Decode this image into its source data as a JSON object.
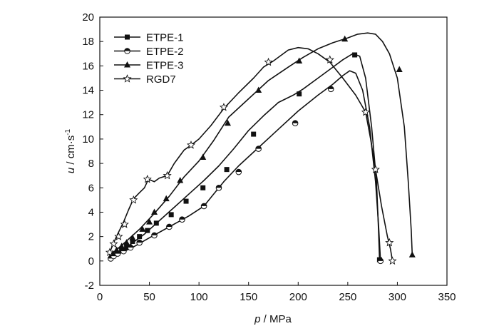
{
  "chart_data": {
    "type": "line",
    "title": "",
    "xlabel": {
      "var": "p",
      "unit": "MPa"
    },
    "ylabel": {
      "var": "u",
      "unit_base": "cm·s",
      "unit_exp": "-1"
    },
    "xlim": [
      0,
      350
    ],
    "ylim": [
      -2,
      20
    ],
    "xticks": [
      0,
      50,
      100,
      150,
      200,
      250,
      300,
      350
    ],
    "yticks": [
      -2,
      0,
      2,
      4,
      6,
      8,
      10,
      12,
      14,
      16,
      18,
      20
    ],
    "grid": false,
    "legend_position": "top-left",
    "series": [
      {
        "name": "ETPE-1",
        "marker": "square-filled",
        "curve": [
          [
            10,
            0.3
          ],
          [
            20,
            0.8
          ],
          [
            30,
            1.3
          ],
          [
            45,
            2.2
          ],
          [
            60,
            3.3
          ],
          [
            75,
            4.4
          ],
          [
            90,
            5.5
          ],
          [
            105,
            6.6
          ],
          [
            120,
            7.8
          ],
          [
            135,
            9.2
          ],
          [
            150,
            10.7
          ],
          [
            165,
            11.9
          ],
          [
            180,
            13.0
          ],
          [
            195,
            13.6
          ],
          [
            205,
            14.1
          ],
          [
            220,
            15.0
          ],
          [
            235,
            15.9
          ],
          [
            245,
            16.5
          ],
          [
            255,
            17.0
          ],
          [
            262,
            16.8
          ],
          [
            268,
            15.0
          ],
          [
            274,
            11.0
          ],
          [
            279,
            6.5
          ],
          [
            281,
            2.5
          ],
          [
            282,
            0.1
          ]
        ],
        "markers": [
          [
            12,
            0.4
          ],
          [
            17,
            0.6
          ],
          [
            22,
            0.9
          ],
          [
            27,
            1.1
          ],
          [
            33,
            1.6
          ],
          [
            40,
            2.0
          ],
          [
            48,
            2.5
          ],
          [
            57,
            3.1
          ],
          [
            72,
            3.8
          ],
          [
            87,
            4.9
          ],
          [
            104,
            6.0
          ],
          [
            128,
            7.5
          ],
          [
            155,
            10.4
          ],
          [
            201,
            13.7
          ],
          [
            257,
            16.9
          ],
          [
            282,
            0.1
          ]
        ]
      },
      {
        "name": "ETPE-2",
        "marker": "circle-half",
        "curve": [
          [
            10,
            0.2
          ],
          [
            20,
            0.6
          ],
          [
            35,
            1.2
          ],
          [
            50,
            1.9
          ],
          [
            70,
            2.8
          ],
          [
            90,
            3.7
          ],
          [
            105,
            4.5
          ],
          [
            115,
            5.5
          ],
          [
            125,
            6.5
          ],
          [
            140,
            7.8
          ],
          [
            160,
            9.3
          ],
          [
            180,
            10.8
          ],
          [
            200,
            12.3
          ],
          [
            220,
            13.6
          ],
          [
            235,
            14.5
          ],
          [
            245,
            15.2
          ],
          [
            252,
            15.6
          ],
          [
            258,
            15.4
          ],
          [
            265,
            14.0
          ],
          [
            272,
            11.0
          ],
          [
            278,
            6.5
          ],
          [
            281,
            3.0
          ],
          [
            283,
            0.0
          ]
        ],
        "markers": [
          [
            11,
            0.2
          ],
          [
            14,
            0.4
          ],
          [
            18,
            0.6
          ],
          [
            24,
            0.8
          ],
          [
            31,
            1.1
          ],
          [
            40,
            1.5
          ],
          [
            55,
            2.1
          ],
          [
            70,
            2.8
          ],
          [
            83,
            3.4
          ],
          [
            105,
            4.5
          ],
          [
            120,
            6.0
          ],
          [
            140,
            7.3
          ],
          [
            160,
            9.2
          ],
          [
            197,
            11.3
          ],
          [
            233,
            14.1
          ],
          [
            283,
            0.0
          ]
        ]
      },
      {
        "name": "ETPE-3",
        "marker": "triangle-filled",
        "curve": [
          [
            10,
            0.4
          ],
          [
            15,
            0.8
          ],
          [
            25,
            1.5
          ],
          [
            40,
            2.6
          ],
          [
            55,
            3.9
          ],
          [
            70,
            5.3
          ],
          [
            85,
            6.9
          ],
          [
            100,
            8.2
          ],
          [
            115,
            9.9
          ],
          [
            130,
            11.8
          ],
          [
            150,
            13.3
          ],
          [
            170,
            14.8
          ],
          [
            190,
            15.9
          ],
          [
            205,
            16.7
          ],
          [
            220,
            17.4
          ],
          [
            235,
            17.9
          ],
          [
            250,
            18.3
          ],
          [
            260,
            18.6
          ],
          [
            270,
            18.7
          ],
          [
            278,
            18.6
          ],
          [
            285,
            18.0
          ],
          [
            292,
            17.0
          ],
          [
            300,
            15.0
          ],
          [
            307,
            11.0
          ],
          [
            311,
            6.5
          ],
          [
            314,
            2.5
          ],
          [
            315,
            0.5
          ]
        ],
        "markers": [
          [
            13,
            0.6
          ],
          [
            17,
            0.9
          ],
          [
            22,
            1.2
          ],
          [
            27,
            1.5
          ],
          [
            33,
            1.9
          ],
          [
            43,
            2.6
          ],
          [
            50,
            3.2
          ],
          [
            55,
            4.0
          ],
          [
            67,
            5.1
          ],
          [
            81,
            6.6
          ],
          [
            104,
            8.5
          ],
          [
            129,
            11.3
          ],
          [
            160,
            14.0
          ],
          [
            201,
            16.4
          ],
          [
            247,
            18.2
          ],
          [
            302,
            15.7
          ],
          [
            315,
            0.5
          ]
        ]
      },
      {
        "name": "RGD7",
        "marker": "star-open",
        "curve": [
          [
            10,
            0.7
          ],
          [
            14,
            1.5
          ],
          [
            18,
            2.2
          ],
          [
            24,
            3.2
          ],
          [
            29,
            4.2
          ],
          [
            34,
            5.1
          ],
          [
            40,
            5.6
          ],
          [
            45,
            6.0
          ],
          [
            49,
            6.7
          ],
          [
            55,
            6.5
          ],
          [
            60,
            6.8
          ],
          [
            68,
            7.0
          ],
          [
            75,
            8.0
          ],
          [
            85,
            9.1
          ],
          [
            92,
            9.5
          ],
          [
            100,
            10.0
          ],
          [
            112,
            11.1
          ],
          [
            125,
            12.5
          ],
          [
            140,
            13.8
          ],
          [
            155,
            15.0
          ],
          [
            165,
            15.9
          ],
          [
            175,
            16.4
          ],
          [
            190,
            17.3
          ],
          [
            200,
            17.5
          ],
          [
            210,
            17.4
          ],
          [
            220,
            17.0
          ],
          [
            232,
            16.3
          ],
          [
            245,
            15.0
          ],
          [
            258,
            13.6
          ],
          [
            268,
            12.2
          ],
          [
            273,
            10.0
          ],
          [
            278,
            7.5
          ],
          [
            284,
            4.5
          ],
          [
            290,
            2.0
          ],
          [
            293,
            1.0
          ],
          [
            295,
            0.0
          ]
        ],
        "markers": [
          [
            10,
            0.7
          ],
          [
            14,
            1.4
          ],
          [
            19,
            2.0
          ],
          [
            25,
            3.0
          ],
          [
            34,
            5.0
          ],
          [
            48,
            6.7
          ],
          [
            68,
            7.0
          ],
          [
            92,
            9.5
          ],
          [
            125,
            12.6
          ],
          [
            170,
            16.3
          ],
          [
            232,
            16.5
          ],
          [
            268,
            12.2
          ],
          [
            278,
            7.5
          ],
          [
            292,
            1.5
          ],
          [
            295,
            0.0
          ]
        ]
      }
    ]
  }
}
